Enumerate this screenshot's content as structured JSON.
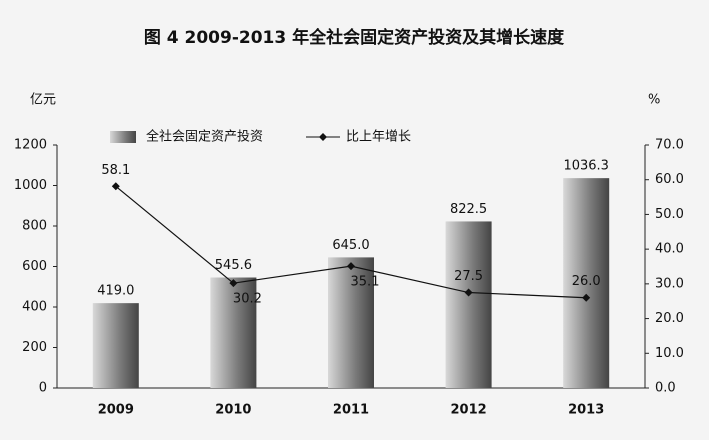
{
  "chart_data": {
    "type": "bar-line",
    "title": "图 4 2009-2013 年全社会固定资产投资及其增长速度",
    "y_label": "亿元",
    "y2_label": "%",
    "categories": [
      "2009",
      "2010",
      "2011",
      "2012",
      "2013"
    ],
    "series": [
      {
        "name": "全社会固定资产投资",
        "type": "bar",
        "color": "#666666",
        "values": [
          419.0,
          545.6,
          645.0,
          822.5,
          1036.3
        ],
        "value_labels": [
          "419.0",
          "545.6",
          "645.0",
          "822.5",
          "1036.3"
        ]
      },
      {
        "name": "比上年增长",
        "type": "line",
        "axis": "y2",
        "color": "#111111",
        "values": [
          58.1,
          30.2,
          35.1,
          27.5,
          26.0
        ],
        "value_labels": [
          "58.1",
          "30.2",
          "35.1",
          "27.5",
          "26.0"
        ]
      }
    ],
    "ylim": [
      0,
      1200
    ],
    "yticks": [
      0,
      200,
      400,
      600,
      800,
      1000,
      1200
    ],
    "y2lim": [
      0,
      70
    ],
    "y2ticks": [
      {
        "value": 0,
        "label": "0.0"
      },
      {
        "value": 10,
        "label": "10.0"
      },
      {
        "value": 20,
        "label": "20.0"
      },
      {
        "value": 30,
        "label": "30.0"
      },
      {
        "value": 40,
        "label": "40.0"
      },
      {
        "value": 50,
        "label": "50.0"
      },
      {
        "value": 60,
        "label": "60.0"
      },
      {
        "value": 70,
        "label": "70.0"
      }
    ],
    "legend": "top"
  }
}
